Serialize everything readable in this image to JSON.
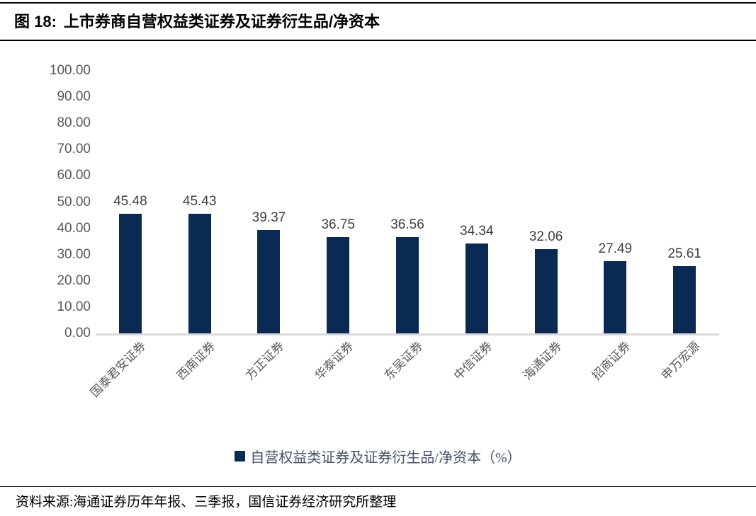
{
  "header": {
    "figure_label": "图 18:",
    "title": "上市券商自营权益类证券及证券衍生品/净资本"
  },
  "chart_data": {
    "type": "bar",
    "title": "上市券商自营权益类证券及证券衍生品/净资本",
    "categories": [
      "国泰君安证券",
      "西南证券",
      "方正证券",
      "华泰证券",
      "东吴证券",
      "中信证券",
      "海通证券",
      "招商证券",
      "申万宏源"
    ],
    "values": [
      45.48,
      45.43,
      39.37,
      36.75,
      36.56,
      34.34,
      32.06,
      27.49,
      25.61
    ],
    "value_labels": [
      "45.48",
      "45.43",
      "39.37",
      "36.75",
      "36.56",
      "34.34",
      "32.06",
      "27.49",
      "25.61"
    ],
    "legend": "自营权益类证券及证券衍生品/净资本（%）",
    "legend_position": "bottom",
    "xlabel": "",
    "ylabel": "",
    "ylim": [
      0,
      100
    ],
    "ytick_step": 10,
    "yticks": [
      "100.00",
      "90.00",
      "80.00",
      "70.00",
      "60.00",
      "50.00",
      "40.00",
      "30.00",
      "20.00",
      "10.00",
      "0.00"
    ],
    "grid": false,
    "bar_color": "#0b2a53",
    "baseline_color": "#d9d9d9",
    "tick_label_color": "#595959",
    "value_label_color": "#404040",
    "legend_text_color": "#44546a"
  },
  "footer": {
    "source": "资料来源:海通证券历年年报、三季报，国信证券经济研究所整理"
  }
}
